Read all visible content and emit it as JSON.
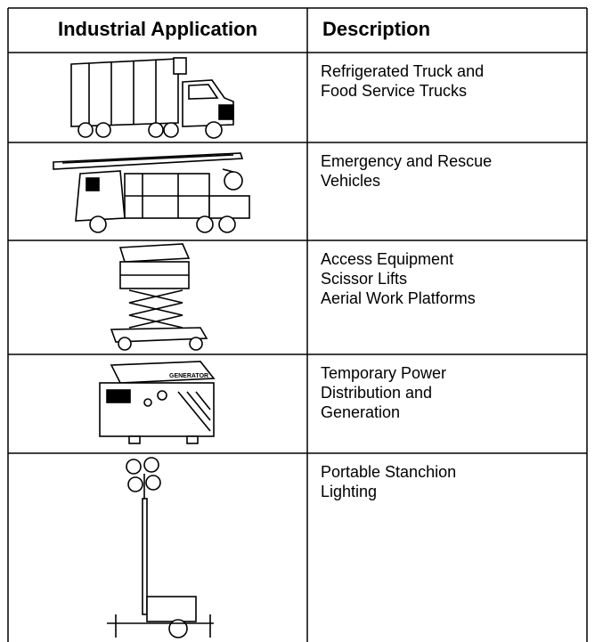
{
  "table": {
    "header": [
      "Industrial Application",
      "Description"
    ],
    "rows": [
      {
        "description": [
          "Refrigerated Truck and",
          "Food Service Trucks"
        ]
      },
      {
        "description": [
          "Emergency and Rescue",
          "Vehicles"
        ]
      },
      {
        "description": [
          "Access Equipment",
          "Scissor Lifts",
          "Aerial Work Platforms"
        ]
      },
      {
        "description": [
          "Temporary Power",
          "Distribution and",
          "Generation"
        ]
      },
      {
        "description": [
          "Portable Stanchion",
          "Lighting"
        ]
      }
    ]
  }
}
